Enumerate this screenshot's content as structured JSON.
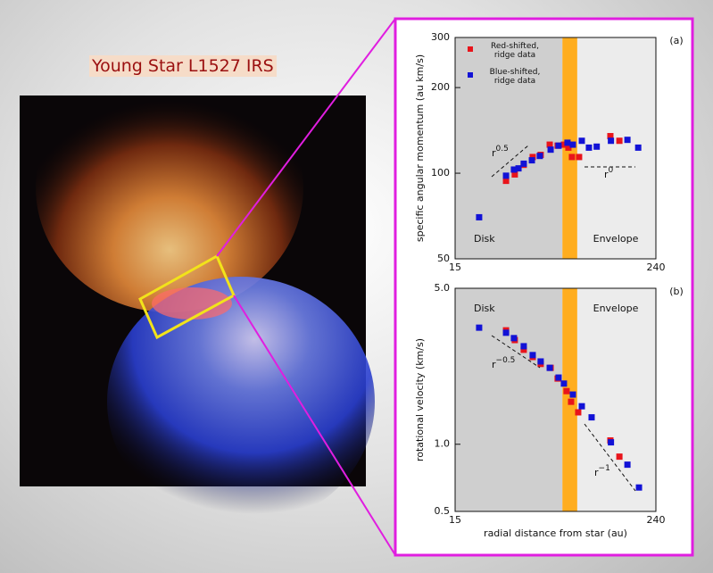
{
  "image_title": "Young Star L1527 IRS",
  "chart_data": [
    {
      "type": "scatter",
      "panel_label": "(a)",
      "ylabel": "specific angular momentum (au km/s)",
      "xlim": [
        15,
        240
      ],
      "xticks": [
        15,
        240
      ],
      "ylim": [
        50,
        300
      ],
      "yticks": [
        50,
        100,
        200,
        300
      ],
      "log_x": true,
      "log_y": true,
      "band": [
        66,
        81
      ],
      "band_color": "#ffad1f",
      "region_labels": [
        "Disk",
        "Envelope"
      ],
      "annotations": [
        {
          "text": "r",
          "exp": "0.5"
        },
        {
          "text": "r",
          "exp": "0"
        }
      ],
      "series": [
        {
          "name": "Red-shifted, ridge data",
          "color": "#e8141b",
          "x": [
            30.3,
            34.2,
            38.7,
            43.8,
            48.9,
            55.4,
            61.8,
            67.4,
            71.7,
            75.3,
            83.1,
            128,
            145
          ],
          "values": [
            94,
            99,
            107,
            114,
            116,
            126,
            125,
            126,
            123,
            114,
            114,
            135,
            130
          ]
        },
        {
          "name": "Blue-shifted, ridge data",
          "color": "#1212d6",
          "x": [
            20.9,
            30.3,
            33.8,
            36,
            38.7,
            43.3,
            48.3,
            56.1,
            62.6,
            70.8,
            76.3,
            86.3,
            95.2,
            106,
            129,
            162,
            188
          ],
          "values": [
            70,
            98,
            103,
            104,
            108,
            111,
            115,
            121,
            125,
            128,
            126,
            130,
            123,
            124,
            130,
            131,
            123
          ]
        }
      ]
    },
    {
      "type": "scatter",
      "panel_label": "(b)",
      "ylabel": "rotational velocity (km/s)",
      "xlabel": "radial distance from star (au)",
      "xlim": [
        15,
        240
      ],
      "xticks": [
        15,
        240
      ],
      "ylim": [
        0.5,
        5.0
      ],
      "yticks": [
        0.5,
        {
          "value": 1.0,
          "label": "1.0"
        },
        {
          "value": 5.0,
          "label": "5.0"
        }
      ],
      "log_x": true,
      "log_y": true,
      "band": [
        66,
        81
      ],
      "band_color": "#ffad1f",
      "region_labels": [
        "Disk",
        "Envelope"
      ],
      "annotations": [
        {
          "text": "r",
          "exp": "−0.5"
        },
        {
          "text": "r",
          "exp": "−1"
        }
      ],
      "series": [
        {
          "name": "Red-shifted, ridge data",
          "color": "#e8141b",
          "x": [
            30.3,
            34.2,
            38.7,
            43.8,
            48.9,
            56.1,
            61.8,
            69.9,
            74.4,
            82.1,
            128,
            145
          ],
          "values": [
            3.24,
            2.93,
            2.65,
            2.46,
            2.29,
            2.2,
            1.97,
            1.73,
            1.55,
            1.39,
            1.04,
            0.88
          ]
        },
        {
          "name": "Blue-shifted, ridge data",
          "color": "#1212d6",
          "x": [
            20.9,
            30.3,
            33.8,
            38.7,
            43.8,
            48.9,
            55.4,
            62.6,
            67.4,
            76.3,
            86.3,
            98.8,
            129,
            162,
            190
          ],
          "values": [
            3.33,
            3.16,
            2.99,
            2.75,
            2.51,
            2.35,
            2.2,
            1.99,
            1.87,
            1.67,
            1.48,
            1.32,
            1.02,
            0.81,
            0.64
          ]
        }
      ]
    }
  ]
}
